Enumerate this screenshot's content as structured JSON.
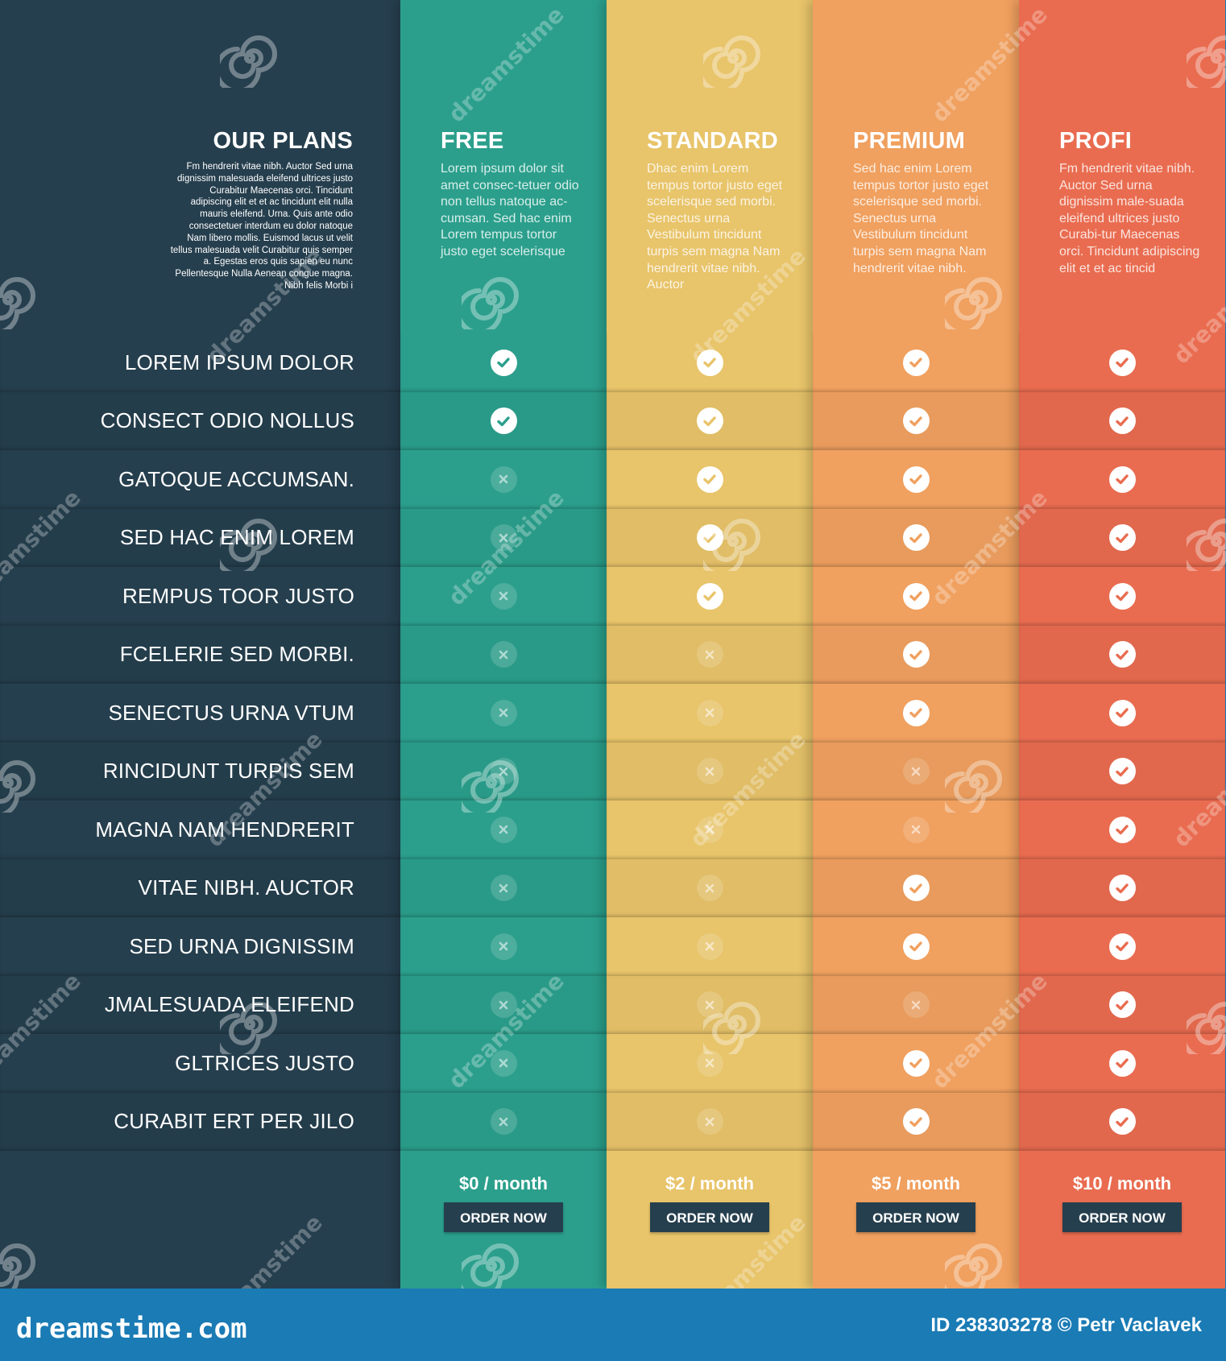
{
  "intro": {
    "title": "OUR PLANS",
    "text": "Fm hendrerit vitae nibh. Auctor Sed urna dignissim malesuada eleifend ultrices justo Curabitur Maecenas orci. Tincidunt adipiscing elit et et ac tincidunt elit nulla mauris eleifend. Urna. Quis ante odio consectetuer interdum eu dolor natoque Nam libero mollis. Euismod lacus ut velit tellus malesuada velit Curabitur quis semper a. Egestas eros quis sapien eu nunc Pellentesque Nulla Aenean congue magna. Nibh felis Morbi i"
  },
  "features": [
    "LOREM IPSUM DOLOR",
    "CONSECT ODIO NOLLUS",
    "GATOQUE ACCUMSAN.",
    "SED HAC ENIM LOREM",
    "REMPUS TOOR JUSTO",
    "FCELERIE SED MORBI.",
    "SENECTUS URNA VTUM",
    "RINCIDUNT TURPIS SEM",
    "MAGNA NAM HENDRERIT",
    "VITAE NIBH. AUCTOR",
    "SED URNA DIGNISSIM",
    "JMALESUADA ELEIFEND",
    "GLTRICES JUSTO",
    "CURABIT ERT PER JILO"
  ],
  "plans": [
    {
      "name": "FREE",
      "color": "#2b9f8c",
      "description": "Lorem ipsum dolor sit amet consec-tetuer odio non tellus natoque ac-cumsan. Sed hac enim Lorem tempus tortor justo eget scelerisque",
      "price": "$0 / month",
      "button": "ORDER NOW",
      "included": [
        true,
        true,
        false,
        false,
        false,
        false,
        false,
        false,
        false,
        false,
        false,
        false,
        false,
        false
      ]
    },
    {
      "name": "STANDARD",
      "color": "#e8c46a",
      "description": "Dhac enim Lorem tempus tortor justo eget scelerisque sed morbi. Senectus urna Vestibulum tincidunt turpis sem magna Nam hendrerit vitae nibh. Auctor",
      "price": "$2 / month",
      "button": "ORDER NOW",
      "included": [
        true,
        true,
        true,
        true,
        true,
        false,
        false,
        false,
        false,
        false,
        false,
        false,
        false,
        false
      ]
    },
    {
      "name": "PREMIUM",
      "color": "#f0a05f",
      "description": "Sed hac enim Lorem tempus tortor justo eget scelerisque sed morbi. Senectus urna Vestibulum tincidunt turpis sem magna Nam hendrerit vitae nibh.",
      "price": "$5 / month",
      "button": "ORDER NOW",
      "included": [
        true,
        true,
        true,
        true,
        true,
        true,
        true,
        false,
        false,
        true,
        true,
        false,
        true,
        true
      ]
    },
    {
      "name": "PROFI",
      "color": "#e96c50",
      "description": "Fm hendrerit vitae nibh. Auctor Sed urna dignissim male-suada eleifend ultrices justo Curabi-tur Maecenas orci. Tincidunt adipiscing elit et et ac tincid",
      "price": "$10 / month",
      "button": "ORDER NOW",
      "included": [
        true,
        true,
        true,
        true,
        true,
        true,
        true,
        true,
        true,
        true,
        true,
        true,
        true,
        true
      ]
    }
  ],
  "colors": {
    "label_column": "#263f4e",
    "button": "#263f4e",
    "bottom_bar": "#1a7bb5"
  },
  "icons": {
    "included": "check-circle-icon",
    "excluded": "x-circle-icon",
    "watermark": "spiral-logo-icon"
  },
  "footer": {
    "brand": "dreamstime.com",
    "credit": "ID 238303278 © Petr Vaclavek"
  },
  "watermark_text": "dreamstime"
}
